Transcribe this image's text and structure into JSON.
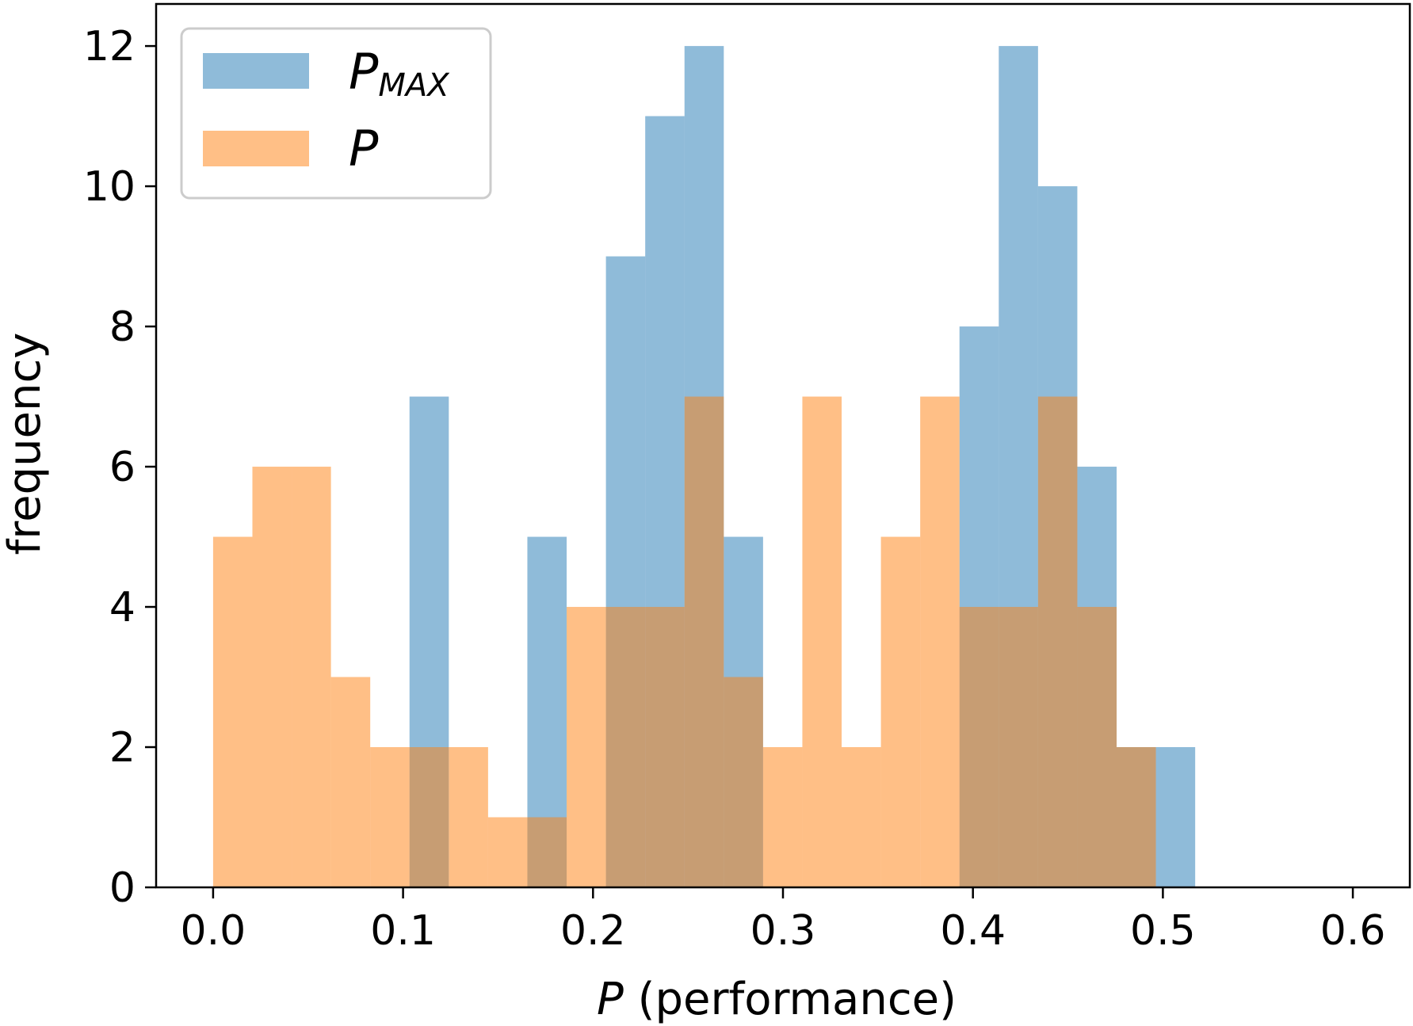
{
  "chart_data": {
    "type": "bar",
    "subtype": "overlapping-histogram",
    "title": "",
    "xlabel_italic": "P",
    "xlabel_rest": " (performance)",
    "ylabel": "frequency",
    "xlim": [
      -0.03,
      0.63
    ],
    "ylim": [
      0,
      12.6
    ],
    "x_ticks": [
      0.0,
      0.1,
      0.2,
      0.3,
      0.4,
      0.5,
      0.6
    ],
    "x_tick_labels": [
      "0.0",
      "0.1",
      "0.2",
      "0.3",
      "0.4",
      "0.5",
      "0.6"
    ],
    "y_ticks": [
      0,
      2,
      4,
      6,
      8,
      10,
      12
    ],
    "y_tick_labels": [
      "0",
      "2",
      "4",
      "6",
      "8",
      "10",
      "12"
    ],
    "bin_start": 0.0,
    "bin_width": 0.02068,
    "series": [
      {
        "name": "P_MAX",
        "legend_main": "P",
        "legend_sub": "MAX",
        "color": "#1f77b4",
        "alpha": 0.5,
        "values": [
          0,
          0,
          0,
          0,
          0,
          7,
          0,
          0,
          5,
          0,
          9,
          11,
          12,
          5,
          0,
          0,
          0,
          0,
          0,
          8,
          12,
          10,
          6,
          2,
          2,
          0,
          0,
          0,
          0,
          0
        ]
      },
      {
        "name": "P",
        "legend_main": "P",
        "legend_sub": "",
        "color": "#ff7f0e",
        "alpha": 0.5,
        "values": [
          5,
          6,
          6,
          3,
          2,
          2,
          2,
          1,
          1,
          4,
          4,
          4,
          7,
          3,
          2,
          7,
          2,
          5,
          7,
          4,
          4,
          7,
          4,
          2,
          0,
          0,
          0,
          0,
          0,
          0
        ]
      }
    ],
    "legend_position": "upper-left",
    "grid": false
  }
}
